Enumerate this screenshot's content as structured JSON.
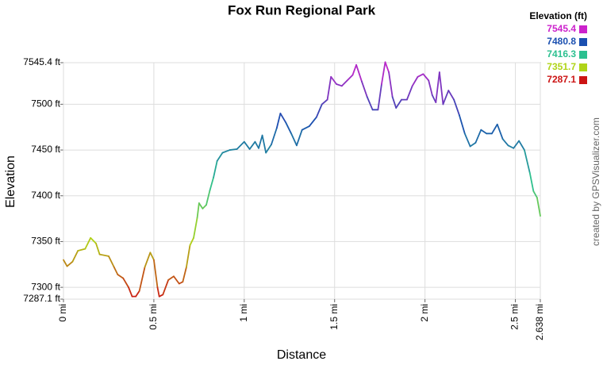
{
  "chart_data": {
    "type": "line",
    "title": "Fox Run Regional Park",
    "x_label": "Distance",
    "y_label": "Elevation",
    "credit": "created by GPSVisualizer.com",
    "legend_title": "Elevation (ft)",
    "legend": [
      {
        "value": 7545.4,
        "color": "#cc22cc"
      },
      {
        "value": 7480.8,
        "color": "#1a4fb0"
      },
      {
        "value": 7416.3,
        "color": "#2cc090"
      },
      {
        "value": 7351.7,
        "color": "#b0d418"
      },
      {
        "value": 7287.1,
        "color": "#cc1414"
      }
    ],
    "x": [
      0,
      0.02,
      0.05,
      0.08,
      0.12,
      0.15,
      0.18,
      0.2,
      0.25,
      0.28,
      0.3,
      0.33,
      0.36,
      0.38,
      0.4,
      0.42,
      0.45,
      0.48,
      0.5,
      0.52,
      0.53,
      0.55,
      0.58,
      0.61,
      0.64,
      0.66,
      0.68,
      0.7,
      0.72,
      0.74,
      0.75,
      0.77,
      0.79,
      0.81,
      0.83,
      0.85,
      0.88,
      0.92,
      0.96,
      1.0,
      1.03,
      1.06,
      1.08,
      1.1,
      1.12,
      1.15,
      1.18,
      1.2,
      1.23,
      1.26,
      1.29,
      1.32,
      1.36,
      1.4,
      1.43,
      1.46,
      1.48,
      1.51,
      1.54,
      1.57,
      1.6,
      1.62,
      1.65,
      1.68,
      1.71,
      1.74,
      1.76,
      1.78,
      1.8,
      1.82,
      1.84,
      1.87,
      1.9,
      1.93,
      1.96,
      1.99,
      2.02,
      2.04,
      2.06,
      2.08,
      2.1,
      2.13,
      2.16,
      2.19,
      2.22,
      2.25,
      2.28,
      2.31,
      2.34,
      2.37,
      2.4,
      2.43,
      2.46,
      2.49,
      2.52,
      2.55,
      2.58,
      2.6,
      2.62,
      2.638
    ],
    "values": [
      7330,
      7323,
      7328,
      7340,
      7342,
      7354,
      7348,
      7336,
      7334,
      7322,
      7314,
      7310,
      7300,
      7290,
      7290,
      7296,
      7322,
      7338,
      7330,
      7300,
      7290,
      7292,
      7308,
      7312,
      7304,
      7306,
      7322,
      7346,
      7354,
      7376,
      7392,
      7386,
      7390,
      7406,
      7420,
      7438,
      7447,
      7450,
      7451,
      7459,
      7451,
      7459,
      7452,
      7466,
      7447,
      7456,
      7474,
      7490,
      7480,
      7468,
      7455,
      7472,
      7476,
      7486,
      7500,
      7505,
      7530,
      7522,
      7520,
      7526,
      7532,
      7543,
      7525,
      7508,
      7494,
      7494,
      7522,
      7546,
      7535,
      7508,
      7496,
      7505,
      7505,
      7520,
      7530,
      7533,
      7526,
      7510,
      7502,
      7535,
      7500,
      7515,
      7505,
      7488,
      7468,
      7454,
      7458,
      7472,
      7468,
      7468,
      7478,
      7462,
      7455,
      7452,
      7460,
      7450,
      7425,
      7405,
      7398,
      7378
    ],
    "xlim": [
      0,
      2.638
    ],
    "ylim": [
      7287.1,
      7545.4
    ],
    "xticks": [
      {
        "value": 0,
        "label": "0 mi"
      },
      {
        "value": 0.5,
        "label": "0.5 mi"
      },
      {
        "value": 1,
        "label": "1 mi"
      },
      {
        "value": 1.5,
        "label": "1.5 mi"
      },
      {
        "value": 2,
        "label": "2 mi"
      },
      {
        "value": 2.5,
        "label": "2.5 mi"
      },
      {
        "value": 2.638,
        "label": "2.638 mi"
      }
    ],
    "yticks": [
      {
        "value": 7287.1,
        "label": "7287.1 ft"
      },
      {
        "value": 7300,
        "label": "7300 ft"
      },
      {
        "value": 7350,
        "label": "7350 ft"
      },
      {
        "value": 7400,
        "label": "7400 ft"
      },
      {
        "value": 7450,
        "label": "7450 ft"
      },
      {
        "value": 7500,
        "label": "7500 ft"
      },
      {
        "value": 7545.4,
        "label": "7545.4 ft"
      }
    ],
    "grid": true
  }
}
